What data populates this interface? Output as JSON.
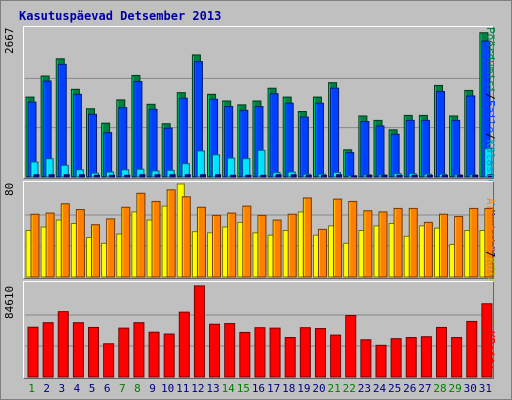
{
  "title": "Kasutuspäevad Detsember 2013",
  "colors": {
    "visits": "#0000c0",
    "pages": "#0040ff",
    "files": "#00c0ff",
    "hits": "#00c000",
    "bytes": "#ff0000",
    "sites": "#ff8000",
    "weekday_label": "#000080",
    "weekend_label": "#008000"
  },
  "legend_top": [
    "Pöördumisi",
    "/",
    "Faile",
    "/",
    "Külastused",
    "/",
    "Lehekülgi"
  ],
  "legend_middle": [
    "Arvuteid",
    "/",
    "Külastused"
  ],
  "legend_bottom": [
    "KBaite"
  ],
  "chart_data": [
    {
      "type": "bar",
      "title": "Kasutuspäevad Detsember 2013",
      "categories": [
        "1",
        "2",
        "3",
        "4",
        "5",
        "6",
        "7",
        "8",
        "9",
        "10",
        "11",
        "12",
        "13",
        "14",
        "15",
        "16",
        "17",
        "18",
        "19",
        "20",
        "21",
        "22",
        "23",
        "24",
        "25",
        "26",
        "27",
        "28",
        "29",
        "30",
        "31"
      ],
      "weekend_days": [
        "1",
        "7",
        "8",
        "14",
        "15",
        "21",
        "22",
        "28",
        "29"
      ],
      "ymax_label": "2667",
      "ylim": [
        0,
        2667
      ],
      "series": [
        {
          "name": "Pöördumisi",
          "values": [
            1440,
            1820,
            2130,
            1580,
            1230,
            970,
            1390,
            1830,
            1310,
            960,
            1520,
            2200,
            1490,
            1370,
            1300,
            1370,
            1600,
            1440,
            1180,
            1440,
            1700,
            490,
            1100,
            1020,
            850,
            1110,
            1110,
            1650,
            1100,
            1560,
            2600
          ]
        },
        {
          "name": "Faile",
          "values": [
            1350,
            1730,
            2030,
            1490,
            1130,
            800,
            1250,
            1720,
            1220,
            880,
            1420,
            2080,
            1400,
            1270,
            1200,
            1270,
            1500,
            1330,
            1080,
            1330,
            1600,
            440,
            1000,
            920,
            770,
            1020,
            1020,
            1540,
            1020,
            1460,
            2450
          ]
        },
        {
          "name": "Lehekülgi",
          "values": [
            270,
            330,
            210,
            130,
            70,
            90,
            130,
            140,
            110,
            120,
            240,
            470,
            400,
            340,
            330,
            480,
            80,
            90,
            50,
            50,
            80,
            20,
            40,
            40,
            60,
            60,
            50,
            50,
            40,
            40,
            510
          ]
        },
        {
          "name": "Külastused",
          "values": [
            40,
            40,
            40,
            40,
            30,
            30,
            30,
            40,
            40,
            40,
            40,
            40,
            40,
            30,
            30,
            30,
            40,
            40,
            30,
            30,
            40,
            20,
            30,
            30,
            30,
            30,
            30,
            30,
            30,
            30,
            40
          ]
        }
      ]
    },
    {
      "type": "bar",
      "categories": [
        "1",
        "2",
        "3",
        "4",
        "5",
        "6",
        "7",
        "8",
        "9",
        "10",
        "11",
        "12",
        "13",
        "14",
        "15",
        "16",
        "17",
        "18",
        "19",
        "20",
        "21",
        "22",
        "23",
        "24",
        "25",
        "26",
        "27",
        "28",
        "29",
        "30",
        "31"
      ],
      "ymax_label": "80",
      "ylim": [
        0,
        80
      ],
      "series": [
        {
          "name": "Arvuteid",
          "values": [
            54,
            55,
            63,
            58,
            45,
            50,
            60,
            72,
            65,
            75,
            69,
            60,
            53,
            55,
            61,
            53,
            49,
            54,
            68,
            41,
            67,
            65,
            57,
            56,
            59,
            59,
            47,
            54,
            52,
            59,
            59
          ]
        },
        {
          "name": "Külastused",
          "values": [
            40,
            43,
            49,
            46,
            34,
            29,
            37,
            56,
            49,
            61,
            81,
            39,
            38,
            43,
            47,
            38,
            36,
            40,
            56,
            36,
            44,
            29,
            40,
            44,
            46,
            35,
            44,
            42,
            28,
            40,
            40
          ]
        }
      ]
    },
    {
      "type": "bar",
      "categories": [
        "1",
        "2",
        "3",
        "4",
        "5",
        "6",
        "7",
        "8",
        "9",
        "10",
        "11",
        "12",
        "13",
        "14",
        "15",
        "16",
        "17",
        "18",
        "19",
        "20",
        "21",
        "22",
        "23",
        "24",
        "25",
        "26",
        "27",
        "28",
        "29",
        "30",
        "31"
      ],
      "ymax_label": "84610",
      "ylim": [
        0,
        84610
      ],
      "series": [
        {
          "name": "KBaite",
          "values": [
            45280,
            49420,
            59470,
            49420,
            45080,
            30230,
            44450,
            49420,
            40750,
            39090,
            59000,
            82890,
            48010,
            48610,
            40570,
            44860,
            44450,
            35920,
            44860,
            44080,
            38100,
            55930,
            33880,
            28830,
            34860,
            35900,
            36650,
            45080,
            35900,
            50560,
            66640
          ]
        }
      ]
    }
  ]
}
